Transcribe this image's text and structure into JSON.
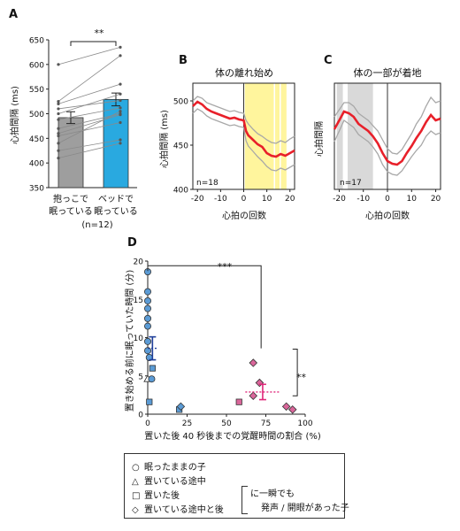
{
  "panels": {
    "A": {
      "letter": "A",
      "chart_data": {
        "type": "bar",
        "ylabel": "心拍間隔 (ms)",
        "ylim": [
          350,
          650
        ],
        "yticks": [
          350,
          400,
          450,
          500,
          550,
          600,
          650
        ],
        "categories": [
          {
            "line1": "抱っこで",
            "line2": "眠っている",
            "color": "#9e9e9e"
          },
          {
            "line1": "ベッドで",
            "line2": "眠っている",
            "color": "#29a9e0"
          }
        ],
        "values": [
          492,
          529
        ],
        "errors": [
          12,
          13
        ],
        "paired_points": [
          [
            460,
            498
          ],
          [
            520,
            560
          ],
          [
            600,
            635
          ],
          [
            525,
            618
          ],
          [
            510,
            527
          ],
          [
            500,
            540
          ],
          [
            488,
            512
          ],
          [
            470,
            500
          ],
          [
            455,
            482
          ],
          [
            440,
            505
          ],
          [
            425,
            447
          ],
          [
            410,
            440
          ]
        ],
        "n_label": "(n=12)",
        "significance": "**"
      }
    },
    "B": {
      "letter": "B",
      "chart_data": {
        "type": "line",
        "title": "体の離れ始め",
        "xlabel": "心拍の回数",
        "ylabel": "心拍間隔 (ms)",
        "xlim": [
          -22,
          22
        ],
        "ylim": [
          400,
          520
        ],
        "xticks": [
          -20,
          -10,
          0,
          10,
          20
        ],
        "yticks": [
          400,
          450,
          500
        ],
        "n_label": "n=18",
        "x": [
          -22,
          -20,
          -18,
          -16,
          -14,
          -12,
          -10,
          -8,
          -6,
          -4,
          -2,
          0,
          1,
          2,
          4,
          6,
          8,
          10,
          12,
          14,
          16,
          18,
          20,
          22
        ],
        "mean": [
          494,
          499,
          496,
          491,
          488,
          486,
          484,
          482,
          480,
          481,
          479,
          478,
          466,
          461,
          456,
          451,
          448,
          441,
          438,
          437,
          440,
          438,
          441,
          444
        ],
        "upper": [
          500,
          505,
          503,
          498,
          496,
          494,
          492,
          490,
          488,
          489,
          487,
          486,
          478,
          474,
          468,
          463,
          460,
          456,
          453,
          452,
          455,
          453,
          457,
          460
        ],
        "lower": [
          486,
          491,
          488,
          483,
          480,
          478,
          476,
          474,
          472,
          473,
          471,
          470,
          455,
          449,
          443,
          437,
          432,
          426,
          422,
          421,
          424,
          422,
          425,
          428
        ],
        "highlight": {
          "color": "#fff59d",
          "bands": [
            [
              0.5,
              13
            ],
            [
              13.6,
              15.5
            ],
            [
              16.1,
              18.5
            ]
          ]
        }
      }
    },
    "C": {
      "letter": "C",
      "chart_data": {
        "type": "line",
        "title": "体の一部が着地",
        "xlabel": "心拍の回数",
        "ylabel": "心拍間隔",
        "xlim": [
          -22,
          22
        ],
        "ylim": [
          400,
          520
        ],
        "xticks": [
          -20,
          -10,
          0,
          10,
          20
        ],
        "n_label": "n=17",
        "x": [
          -22,
          -20,
          -18,
          -16,
          -14,
          -12,
          -10,
          -8,
          -6,
          -4,
          -2,
          0,
          2,
          4,
          6,
          8,
          10,
          12,
          14,
          16,
          18,
          20,
          22
        ],
        "mean": [
          468,
          478,
          488,
          486,
          482,
          474,
          470,
          466,
          460,
          452,
          441,
          432,
          429,
          428,
          432,
          441,
          449,
          458,
          466,
          476,
          484,
          478,
          480
        ],
        "upper": [
          482,
          490,
          498,
          498,
          494,
          486,
          482,
          478,
          472,
          466,
          456,
          446,
          441,
          440,
          445,
          454,
          463,
          474,
          482,
          494,
          504,
          498,
          500
        ],
        "lower": [
          454,
          466,
          478,
          474,
          470,
          462,
          458,
          454,
          448,
          440,
          428,
          420,
          417,
          416,
          421,
          429,
          437,
          444,
          450,
          460,
          466,
          462,
          464
        ],
        "highlight": {
          "color": "#d9d9d9",
          "bands": [
            [
              -21,
              -18.5
            ],
            [
              -16.5,
              -6
            ]
          ]
        }
      }
    },
    "D": {
      "letter": "D",
      "chart_data": {
        "type": "scatter",
        "xlabel": "置いた後 40 秒後までの覚醒時間の割合 (%)",
        "ylabel": "置き始める前に眠っていた時間 (分)",
        "xlim": [
          0,
          100
        ],
        "ylim": [
          0,
          20
        ],
        "xticks": [
          0,
          25,
          50,
          75,
          100
        ],
        "yticks": [
          0,
          5,
          10,
          15,
          20
        ],
        "groups": [
          {
            "name": "blue",
            "color": "#5b9bd5",
            "points": [
              {
                "x": 0,
                "y": 18.6,
                "shape": "circle"
              },
              {
                "x": 0,
                "y": 16.0,
                "shape": "circle"
              },
              {
                "x": 0,
                "y": 14.8,
                "shape": "circle"
              },
              {
                "x": 0,
                "y": 13.8,
                "shape": "circle"
              },
              {
                "x": 0,
                "y": 12.5,
                "shape": "circle"
              },
              {
                "x": 0,
                "y": 11.5,
                "shape": "circle"
              },
              {
                "x": 0,
                "y": 9.5,
                "shape": "circle"
              },
              {
                "x": 0,
                "y": 8.3,
                "shape": "circle"
              },
              {
                "x": 1,
                "y": 7.4,
                "shape": "circle"
              },
              {
                "x": 0,
                "y": 4.6,
                "shape": "triangle"
              },
              {
                "x": 2.5,
                "y": 4.6,
                "shape": "circle"
              },
              {
                "x": 3,
                "y": 6.0,
                "shape": "square"
              },
              {
                "x": 1,
                "y": 1.6,
                "shape": "square"
              },
              {
                "x": 20,
                "y": 0.6,
                "shape": "square"
              },
              {
                "x": 21,
                "y": 1.0,
                "shape": "diamond"
              }
            ],
            "mean": {
              "x": 3,
              "y": 8.6,
              "err": 1.5,
              "err_x": 3
            }
          },
          {
            "name": "pink",
            "color": "#d9669a",
            "points": [
              {
                "x": 67,
                "y": 6.7,
                "shape": "diamond"
              },
              {
                "x": 71,
                "y": 4.1,
                "shape": "diamond"
              },
              {
                "x": 67,
                "y": 2.4,
                "shape": "diamond"
              },
              {
                "x": 58,
                "y": 1.6,
                "shape": "square"
              },
              {
                "x": 88,
                "y": 1.0,
                "shape": "diamond"
              },
              {
                "x": 92,
                "y": 0.6,
                "shape": "diamond"
              }
            ],
            "mean": {
              "x": 73,
              "y": 2.9,
              "err": 1.0,
              "err_x": 11
            }
          }
        ],
        "significance_x": "***",
        "significance_y": "**"
      }
    }
  },
  "legend": {
    "circle": "眠ったままの子",
    "triangle": "置いている途中",
    "square": "置いた後",
    "diamond": "置いている途中と後",
    "note_line1": "に一瞬でも",
    "note_line2": "発声 / 開眼があった子",
    "sym_circle": "○",
    "sym_triangle": "△",
    "sym_square": "□",
    "sym_diamond": "◇"
  }
}
